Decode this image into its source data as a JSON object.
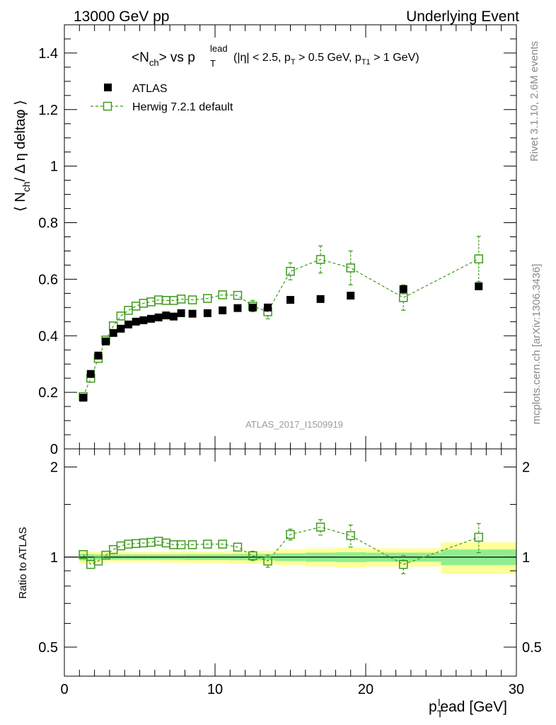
{
  "chart_data": [
    {
      "type": "scatter",
      "header_left": "13000 GeV pp",
      "header_right": "Underlying Event",
      "title": {
        "main": "<N",
        "main_sub": "ch",
        "main_end": "> vs p",
        "main_T": "T",
        "main_sup": "lead",
        "cuts_a": "(|η| < 2.5, p",
        "cuts_sub1": "T",
        "cuts_b": " > 0.5 GeV, p",
        "cuts_sub2": "T1",
        "cuts_c": " > 1 GeV)"
      },
      "ylabel": {
        "a": "⟨ N",
        "sub": "ch",
        "b": "/ Δ η deltaφ ⟩"
      },
      "side_label_top": "Rivet 3.1.10,  2.6M events",
      "side_label_bottom": "mcplots.cern.ch [arXiv:1306.3436]",
      "analysis_label": "ATLAS_2017_I1509919",
      "xlim": [
        0,
        30
      ],
      "ylim": [
        0,
        1.5
      ],
      "y_ticks": [
        0,
        0.2,
        0.4,
        0.6,
        0.8,
        1,
        1.2,
        1.4
      ],
      "y_tick_labels": [
        "0",
        "0.2",
        "0.4",
        "0.6",
        "0.8",
        "1",
        "1.2",
        "1.4"
      ],
      "legend_position": "top-left",
      "series": [
        {
          "name": "ATLAS",
          "style": "filled-square",
          "color": "#000000",
          "x": [
            1.25,
            1.75,
            2.25,
            2.75,
            3.25,
            3.75,
            4.25,
            4.75,
            5.25,
            5.75,
            6.25,
            6.75,
            7.25,
            7.75,
            8.5,
            9.5,
            10.5,
            11.5,
            12.5,
            13.5,
            15,
            17,
            19,
            22.5,
            27.5
          ],
          "y": [
            0.181,
            0.265,
            0.33,
            0.38,
            0.41,
            0.425,
            0.44,
            0.45,
            0.455,
            0.46,
            0.465,
            0.472,
            0.468,
            0.48,
            0.478,
            0.48,
            0.49,
            0.498,
            0.5,
            0.5,
            0.527,
            0.53,
            0.542,
            0.565,
            0.575
          ]
        },
        {
          "name": "Herwig 7.2.1 default",
          "style": "open-square-dashed",
          "color": "#3f9a1c",
          "x": [
            1.25,
            1.75,
            2.25,
            2.75,
            3.25,
            3.75,
            4.25,
            4.75,
            5.25,
            5.75,
            6.25,
            6.75,
            7.25,
            7.75,
            8.5,
            9.5,
            10.5,
            11.5,
            12.5,
            13.5,
            15,
            17,
            19,
            22.5,
            27.5
          ],
          "y": [
            0.185,
            0.25,
            0.32,
            0.385,
            0.435,
            0.47,
            0.49,
            0.505,
            0.515,
            0.52,
            0.527,
            0.525,
            0.525,
            0.53,
            0.527,
            0.532,
            0.545,
            0.543,
            0.505,
            0.485,
            0.628,
            0.67,
            0.64,
            0.535,
            0.672
          ],
          "err": [
            0.005,
            0.005,
            0.005,
            0.005,
            0.005,
            0.006,
            0.006,
            0.006,
            0.006,
            0.006,
            0.007,
            0.007,
            0.007,
            0.008,
            0.008,
            0.009,
            0.012,
            0.015,
            0.02,
            0.025,
            0.03,
            0.048,
            0.06,
            0.045,
            0.08
          ]
        }
      ]
    },
    {
      "type": "scatter",
      "ylabel": "Ratio to ATLAS",
      "xlabel": {
        "a": "p",
        "sub": "T",
        "sup": "l",
        "b": "ead [GeV]"
      },
      "xlim": [
        0,
        30
      ],
      "ylim": [
        0.4,
        2.3
      ],
      "log_y": true,
      "x_ticks": [
        0,
        10,
        20,
        30
      ],
      "x_tick_labels": [
        "0",
        "10",
        "20",
        "30"
      ],
      "y_ticks": [
        0.5,
        1,
        2
      ],
      "y_tick_labels": [
        "0.5",
        "1",
        "2"
      ],
      "band_edges": [
        1,
        1.5,
        2,
        2.5,
        3,
        3.5,
        4,
        4.5,
        5,
        5.5,
        6,
        6.5,
        7,
        7.5,
        8,
        9,
        10,
        11,
        12,
        13,
        14,
        16,
        18,
        20,
        25,
        30
      ],
      "band_inner": [
        0.025,
        0.022,
        0.02,
        0.02,
        0.02,
        0.02,
        0.02,
        0.02,
        0.02,
        0.02,
        0.02,
        0.02,
        0.02,
        0.02,
        0.022,
        0.022,
        0.022,
        0.024,
        0.024,
        0.024,
        0.03,
        0.035,
        0.038,
        0.035,
        0.06
      ],
      "band_outer": [
        0.05,
        0.042,
        0.04,
        0.04,
        0.04,
        0.04,
        0.04,
        0.04,
        0.04,
        0.04,
        0.04,
        0.042,
        0.042,
        0.042,
        0.045,
        0.045,
        0.045,
        0.05,
        0.05,
        0.05,
        0.06,
        0.07,
        0.075,
        0.07,
        0.12
      ],
      "series": [
        {
          "name": "Herwig 7.2.1 default / ATLAS",
          "style": "open-square-dashed",
          "color": "#3f9a1c",
          "x": [
            1.25,
            1.75,
            2.25,
            2.75,
            3.25,
            3.75,
            4.25,
            4.75,
            5.25,
            5.75,
            6.25,
            6.75,
            7.25,
            7.75,
            8.5,
            9.5,
            10.5,
            11.5,
            12.5,
            13.5,
            15,
            17,
            19,
            22.5,
            27.5
          ],
          "y": [
            1.02,
            0.945,
            0.97,
            1.015,
            1.06,
            1.09,
            1.105,
            1.11,
            1.115,
            1.12,
            1.13,
            1.115,
            1.1,
            1.1,
            1.1,
            1.105,
            1.105,
            1.08,
            1.01,
            0.97,
            1.19,
            1.26,
            1.18,
            0.945,
            1.165
          ],
          "err": [
            0.01,
            0.01,
            0.01,
            0.01,
            0.012,
            0.012,
            0.012,
            0.012,
            0.012,
            0.012,
            0.014,
            0.014,
            0.015,
            0.015,
            0.015,
            0.017,
            0.02,
            0.026,
            0.036,
            0.045,
            0.05,
            0.075,
            0.1,
            0.065,
            0.13
          ]
        }
      ]
    }
  ]
}
